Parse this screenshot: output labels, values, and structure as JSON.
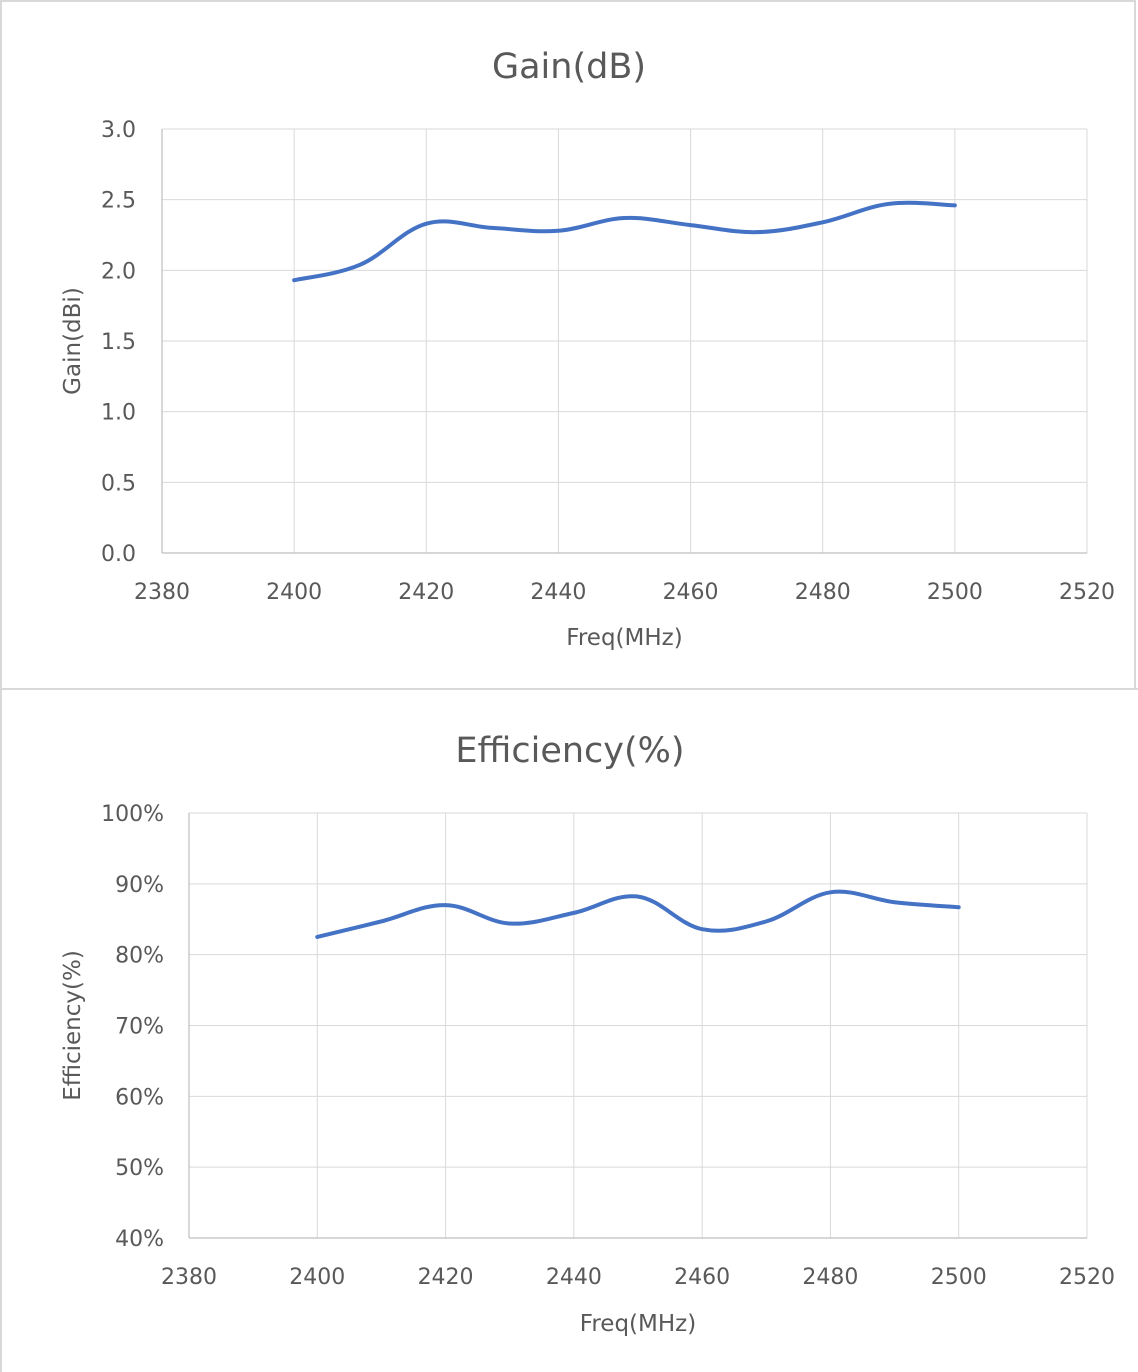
{
  "charts": [
    {
      "title": "Gain(dB)",
      "xlabel": "Freq(MHz)",
      "ylabel": "Gain(dBi)",
      "x_ticks": [
        "2380",
        "2400",
        "2420",
        "2440",
        "2460",
        "2480",
        "2500",
        "2520"
      ],
      "y_ticks": [
        "0.0",
        "0.5",
        "1.0",
        "1.5",
        "2.0",
        "2.5",
        "3.0"
      ]
    },
    {
      "title": "Efficiency(%)",
      "xlabel": "Freq(MHz)",
      "ylabel": "Efficiency(%)",
      "x_ticks": [
        "2380",
        "2400",
        "2420",
        "2440",
        "2460",
        "2480",
        "2500",
        "2520"
      ],
      "y_ticks": [
        "40%",
        "50%",
        "60%",
        "70%",
        "80%",
        "90%",
        "100%"
      ]
    }
  ],
  "chart_data": [
    {
      "type": "line",
      "title": "Gain(dB)",
      "xlabel": "Freq(MHz)",
      "ylabel": "Gain(dBi)",
      "xlim": [
        2380,
        2520
      ],
      "ylim": [
        0,
        3
      ],
      "grid": true,
      "color": "#4472c4",
      "x": [
        2400,
        2410,
        2420,
        2430,
        2440,
        2450,
        2460,
        2470,
        2480,
        2490,
        2500
      ],
      "y": [
        1.93,
        2.04,
        2.33,
        2.3,
        2.28,
        2.37,
        2.32,
        2.27,
        2.34,
        2.47,
        2.46
      ]
    },
    {
      "type": "line",
      "title": "Efficiency(%)",
      "xlabel": "Freq(MHz)",
      "ylabel": "Efficiency(%)",
      "xlim": [
        2380,
        2520
      ],
      "ylim": [
        40,
        100
      ],
      "grid": true,
      "color": "#4472c4",
      "x": [
        2400,
        2410,
        2420,
        2430,
        2440,
        2450,
        2460,
        2470,
        2480,
        2490,
        2500
      ],
      "y": [
        82.5,
        84.7,
        87.0,
        84.4,
        85.9,
        88.2,
        83.6,
        84.7,
        88.8,
        87.4,
        86.7
      ]
    }
  ]
}
